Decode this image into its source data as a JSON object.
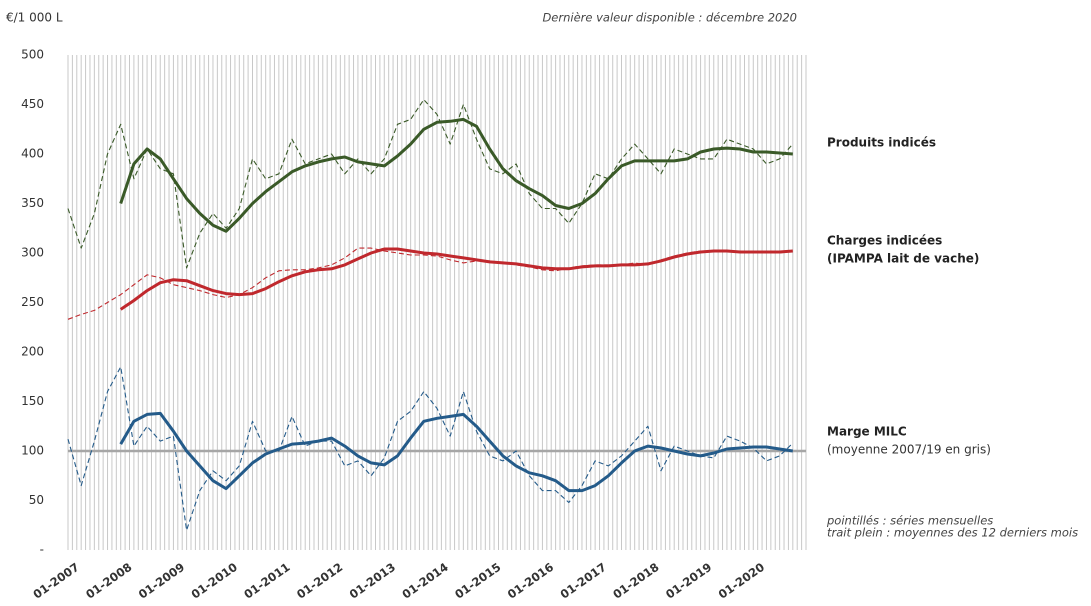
{
  "chart_data": {
    "type": "line",
    "y_label": "€/1 000 L",
    "subtitle": "Dernière valeur disponible : décembre 2020",
    "notes": [
      "pointillés : séries mensuelles",
      "trait plein : moyennes des 12 derniers mois"
    ],
    "x": [
      2007,
      2007.25,
      2007.5,
      2007.75,
      2008,
      2008.25,
      2008.5,
      2008.75,
      2009,
      2009.25,
      2009.5,
      2009.75,
      2010,
      2010.25,
      2010.5,
      2010.75,
      2011,
      2011.25,
      2011.5,
      2011.75,
      2012,
      2012.25,
      2012.5,
      2012.75,
      2013,
      2013.25,
      2013.5,
      2013.75,
      2014,
      2014.25,
      2014.5,
      2014.75,
      2015,
      2015.25,
      2015.5,
      2015.75,
      2016,
      2016.25,
      2016.5,
      2016.75,
      2017,
      2017.25,
      2017.5,
      2017.75,
      2018,
      2018.25,
      2018.5,
      2018.75,
      2019,
      2019.25,
      2019.5,
      2019.75,
      2020,
      2020.25,
      2020.5,
      2020.75
    ],
    "xlim": [
      2007,
      2021
    ],
    "xticks": [
      {
        "value": 2007,
        "label": "01-2007"
      },
      {
        "value": 2008,
        "label": "01-2008"
      },
      {
        "value": 2009,
        "label": "01-2009"
      },
      {
        "value": 2010,
        "label": "01-2010"
      },
      {
        "value": 2011,
        "label": "01-2011"
      },
      {
        "value": 2012,
        "label": "01-2012"
      },
      {
        "value": 2013,
        "label": "01-2013"
      },
      {
        "value": 2014,
        "label": "01-2014"
      },
      {
        "value": 2015,
        "label": "01-2015"
      },
      {
        "value": 2016,
        "label": "01-2016"
      },
      {
        "value": 2017,
        "label": "01-2017"
      },
      {
        "value": 2018,
        "label": "01-2018"
      },
      {
        "value": 2019,
        "label": "01-2019"
      },
      {
        "value": 2020,
        "label": "01-2020"
      }
    ],
    "ylim": [
      0,
      500
    ],
    "yticks": [
      {
        "value": 0,
        "label": "-"
      },
      50,
      100,
      150,
      200,
      250,
      300,
      350,
      400,
      450,
      500
    ],
    "grid": true,
    "reference_line": {
      "value": 100,
      "color": "#a6a6a6"
    },
    "series": [
      {
        "color": "#3a5a28",
        "dash": true,
        "values": [
          345,
          305,
          340,
          400,
          430,
          375,
          405,
          385,
          380,
          285,
          320,
          340,
          325,
          345,
          395,
          375,
          380,
          415,
          390,
          395,
          400,
          380,
          395,
          380,
          395,
          430,
          435,
          455,
          440,
          410,
          450,
          415,
          385,
          380,
          390,
          360,
          345,
          345,
          330,
          350,
          380,
          375,
          395,
          410,
          395,
          380,
          405,
          400,
          395,
          395,
          415,
          410,
          405,
          390,
          395,
          410
        ]
      },
      {
        "name": "Produits indicés",
        "color": "#3a5a28",
        "dash": false,
        "values": [
          null,
          null,
          null,
          null,
          350,
          390,
          405,
          395,
          375,
          355,
          340,
          328,
          322,
          335,
          350,
          362,
          372,
          382,
          388,
          392,
          395,
          397,
          392,
          390,
          388,
          398,
          410,
          425,
          432,
          433,
          435,
          428,
          405,
          385,
          373,
          365,
          358,
          348,
          345,
          350,
          360,
          375,
          388,
          393,
          393,
          393,
          393,
          395,
          402,
          405,
          406,
          405,
          402,
          402,
          401,
          400
        ]
      },
      {
        "color": "#c0282d",
        "dash": true,
        "values": [
          233,
          238,
          242,
          250,
          258,
          268,
          278,
          275,
          268,
          265,
          262,
          258,
          255,
          258,
          265,
          275,
          282,
          283,
          283,
          285,
          288,
          295,
          305,
          305,
          302,
          300,
          298,
          298,
          297,
          293,
          290,
          292,
          292,
          290,
          288,
          286,
          283,
          282,
          285,
          287,
          288,
          288,
          288,
          290,
          288,
          293,
          297,
          300,
          302,
          302,
          302,
          301,
          301,
          300,
          300,
          302
        ]
      },
      {
        "name": "Charges indicées",
        "note": "(IPAMPA lait de vache)",
        "color": "#c0282d",
        "dash": false,
        "values": [
          null,
          null,
          null,
          null,
          243,
          252,
          262,
          270,
          273,
          272,
          267,
          262,
          259,
          258,
          259,
          264,
          271,
          277,
          281,
          283,
          284,
          288,
          294,
          300,
          304,
          304,
          302,
          300,
          299,
          297,
          295,
          293,
          291,
          290,
          289,
          287,
          285,
          284,
          284,
          286,
          287,
          287,
          288,
          288,
          289,
          292,
          296,
          299,
          301,
          302,
          302,
          301,
          301,
          301,
          301,
          302
        ]
      },
      {
        "color": "#245b8a",
        "dash": true,
        "values": [
          112,
          65,
          110,
          160,
          185,
          105,
          125,
          110,
          115,
          20,
          60,
          80,
          70,
          85,
          130,
          100,
          100,
          135,
          105,
          110,
          110,
          85,
          90,
          75,
          93,
          130,
          140,
          160,
          143,
          115,
          160,
          120,
          95,
          90,
          100,
          75,
          60,
          60,
          48,
          65,
          90,
          85,
          95,
          110,
          125,
          80,
          105,
          100,
          95,
          93,
          115,
          110,
          103,
          90,
          95,
          108
        ]
      },
      {
        "name": "Marge MILC",
        "note": "(moyenne 2007/19 en gris)",
        "color": "#245b8a",
        "dash": false,
        "values": [
          null,
          null,
          null,
          null,
          107,
          130,
          137,
          138,
          120,
          100,
          85,
          70,
          62,
          75,
          88,
          97,
          102,
          107,
          108,
          110,
          113,
          105,
          95,
          88,
          86,
          95,
          113,
          130,
          133,
          135,
          137,
          125,
          110,
          95,
          85,
          78,
          75,
          70,
          60,
          60,
          65,
          75,
          88,
          100,
          105,
          103,
          100,
          97,
          95,
          98,
          102,
          103,
          104,
          104,
          102,
          100
        ]
      }
    ]
  }
}
